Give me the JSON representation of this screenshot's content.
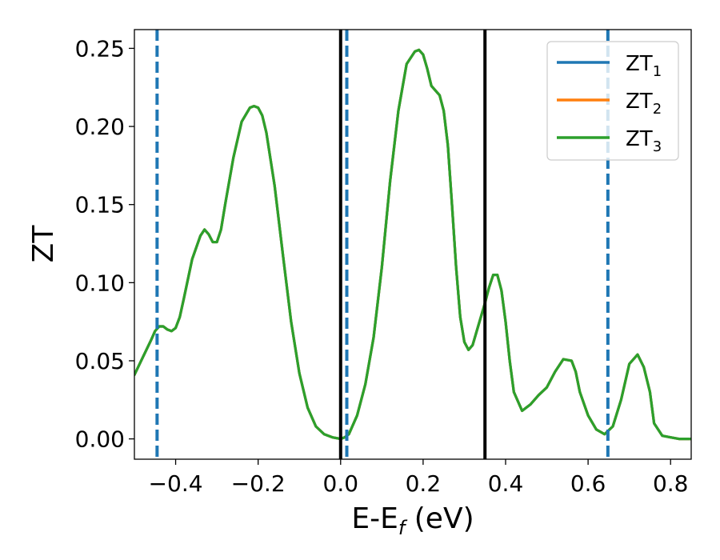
{
  "chart_data": {
    "type": "line",
    "xlabel": {
      "main": "E-E",
      "sub": "f",
      "suffix": " (eV)"
    },
    "ylabel": "ZT",
    "xlim": [
      -0.5,
      0.85
    ],
    "ylim": [
      -0.013,
      0.262
    ],
    "x_ticks": [
      -0.4,
      -0.2,
      0.0,
      0.2,
      0.4,
      0.6,
      0.8
    ],
    "x_tick_labels": [
      "−0.4",
      "−0.2",
      "0.0",
      "0.2",
      "0.4",
      "0.6",
      "0.8"
    ],
    "y_ticks": [
      0.0,
      0.05,
      0.1,
      0.15,
      0.2,
      0.25
    ],
    "y_tick_labels": [
      "0.00",
      "0.05",
      "0.10",
      "0.15",
      "0.20",
      "0.25"
    ],
    "grid": false,
    "legend_position": "top-right",
    "series": [
      {
        "name": "ZT",
        "sub": "1",
        "color": "#1f77b4"
      },
      {
        "name": "ZT",
        "sub": "2",
        "color": "#ff7f0e"
      },
      {
        "name": "ZT",
        "sub": "3",
        "color": "#2ca02c"
      }
    ],
    "x": [
      -0.5,
      -0.48,
      -0.46,
      -0.45,
      -0.44,
      -0.43,
      -0.42,
      -0.41,
      -0.4,
      -0.39,
      -0.38,
      -0.36,
      -0.34,
      -0.33,
      -0.32,
      -0.31,
      -0.3,
      -0.29,
      -0.28,
      -0.26,
      -0.24,
      -0.22,
      -0.21,
      -0.2,
      -0.19,
      -0.18,
      -0.16,
      -0.14,
      -0.12,
      -0.1,
      -0.08,
      -0.06,
      -0.04,
      -0.02,
      0.0,
      0.01,
      0.02,
      0.04,
      0.06,
      0.08,
      0.1,
      0.12,
      0.14,
      0.16,
      0.18,
      0.19,
      0.2,
      0.21,
      0.22,
      0.24,
      0.25,
      0.26,
      0.27,
      0.28,
      0.29,
      0.3,
      0.31,
      0.32,
      0.33,
      0.34,
      0.35,
      0.36,
      0.37,
      0.38,
      0.39,
      0.4,
      0.41,
      0.42,
      0.44,
      0.46,
      0.48,
      0.5,
      0.52,
      0.54,
      0.56,
      0.57,
      0.58,
      0.6,
      0.62,
      0.64,
      0.66,
      0.68,
      0.7,
      0.72,
      0.735,
      0.75,
      0.76,
      0.78,
      0.8,
      0.82,
      0.85
    ],
    "y_series": [
      [
        0.041,
        0.052,
        0.063,
        0.069,
        0.072,
        0.072,
        0.07,
        0.069,
        0.071,
        0.078,
        0.09,
        0.115,
        0.13,
        0.134,
        0.131,
        0.126,
        0.126,
        0.134,
        0.15,
        0.18,
        0.203,
        0.212,
        0.213,
        0.212,
        0.207,
        0.196,
        0.162,
        0.118,
        0.075,
        0.042,
        0.02,
        0.008,
        0.003,
        0.001,
        0.0,
        0.001,
        0.003,
        0.015,
        0.035,
        0.065,
        0.11,
        0.165,
        0.21,
        0.24,
        0.248,
        0.249,
        0.246,
        0.237,
        0.226,
        0.22,
        0.21,
        0.188,
        0.15,
        0.11,
        0.078,
        0.062,
        0.057,
        0.06,
        0.069,
        0.078,
        0.087,
        0.097,
        0.105,
        0.105,
        0.095,
        0.075,
        0.05,
        0.03,
        0.018,
        0.022,
        0.028,
        0.033,
        0.043,
        0.051,
        0.05,
        0.043,
        0.03,
        0.015,
        0.006,
        0.003,
        0.008,
        0.025,
        0.048,
        0.054,
        0.046,
        0.03,
        0.01,
        0.002,
        0.001,
        0.0,
        0.0
      ],
      [
        0.041,
        0.052,
        0.063,
        0.069,
        0.072,
        0.072,
        0.07,
        0.069,
        0.071,
        0.078,
        0.09,
        0.115,
        0.13,
        0.134,
        0.131,
        0.126,
        0.126,
        0.134,
        0.15,
        0.18,
        0.203,
        0.212,
        0.213,
        0.212,
        0.207,
        0.196,
        0.162,
        0.118,
        0.075,
        0.042,
        0.02,
        0.008,
        0.003,
        0.001,
        0.0,
        0.001,
        0.003,
        0.015,
        0.035,
        0.065,
        0.11,
        0.165,
        0.21,
        0.24,
        0.248,
        0.249,
        0.246,
        0.237,
        0.226,
        0.22,
        0.21,
        0.188,
        0.15,
        0.11,
        0.078,
        0.062,
        0.057,
        0.06,
        0.069,
        0.078,
        0.087,
        0.097,
        0.105,
        0.105,
        0.095,
        0.075,
        0.05,
        0.03,
        0.018,
        0.022,
        0.028,
        0.033,
        0.043,
        0.051,
        0.05,
        0.043,
        0.03,
        0.015,
        0.006,
        0.003,
        0.008,
        0.025,
        0.048,
        0.054,
        0.046,
        0.03,
        0.01,
        0.002,
        0.001,
        0.0,
        0.0
      ],
      [
        0.041,
        0.052,
        0.063,
        0.069,
        0.072,
        0.072,
        0.07,
        0.069,
        0.071,
        0.078,
        0.09,
        0.115,
        0.13,
        0.134,
        0.131,
        0.126,
        0.126,
        0.134,
        0.15,
        0.18,
        0.203,
        0.212,
        0.213,
        0.212,
        0.207,
        0.196,
        0.162,
        0.118,
        0.075,
        0.042,
        0.02,
        0.008,
        0.003,
        0.001,
        0.0,
        0.001,
        0.003,
        0.015,
        0.035,
        0.065,
        0.11,
        0.165,
        0.21,
        0.24,
        0.248,
        0.249,
        0.246,
        0.237,
        0.226,
        0.22,
        0.21,
        0.188,
        0.15,
        0.11,
        0.078,
        0.062,
        0.057,
        0.06,
        0.069,
        0.078,
        0.087,
        0.097,
        0.105,
        0.105,
        0.095,
        0.075,
        0.05,
        0.03,
        0.018,
        0.022,
        0.028,
        0.033,
        0.043,
        0.051,
        0.05,
        0.043,
        0.03,
        0.015,
        0.006,
        0.003,
        0.008,
        0.025,
        0.048,
        0.054,
        0.046,
        0.03,
        0.01,
        0.002,
        0.001,
        0.0,
        0.0
      ]
    ],
    "vlines_solid": {
      "x": [
        0.0,
        0.35
      ],
      "color": "#000000"
    },
    "vlines_dashed": {
      "x": [
        -0.445,
        0.015,
        0.648
      ],
      "color": "#1f77b4"
    }
  }
}
